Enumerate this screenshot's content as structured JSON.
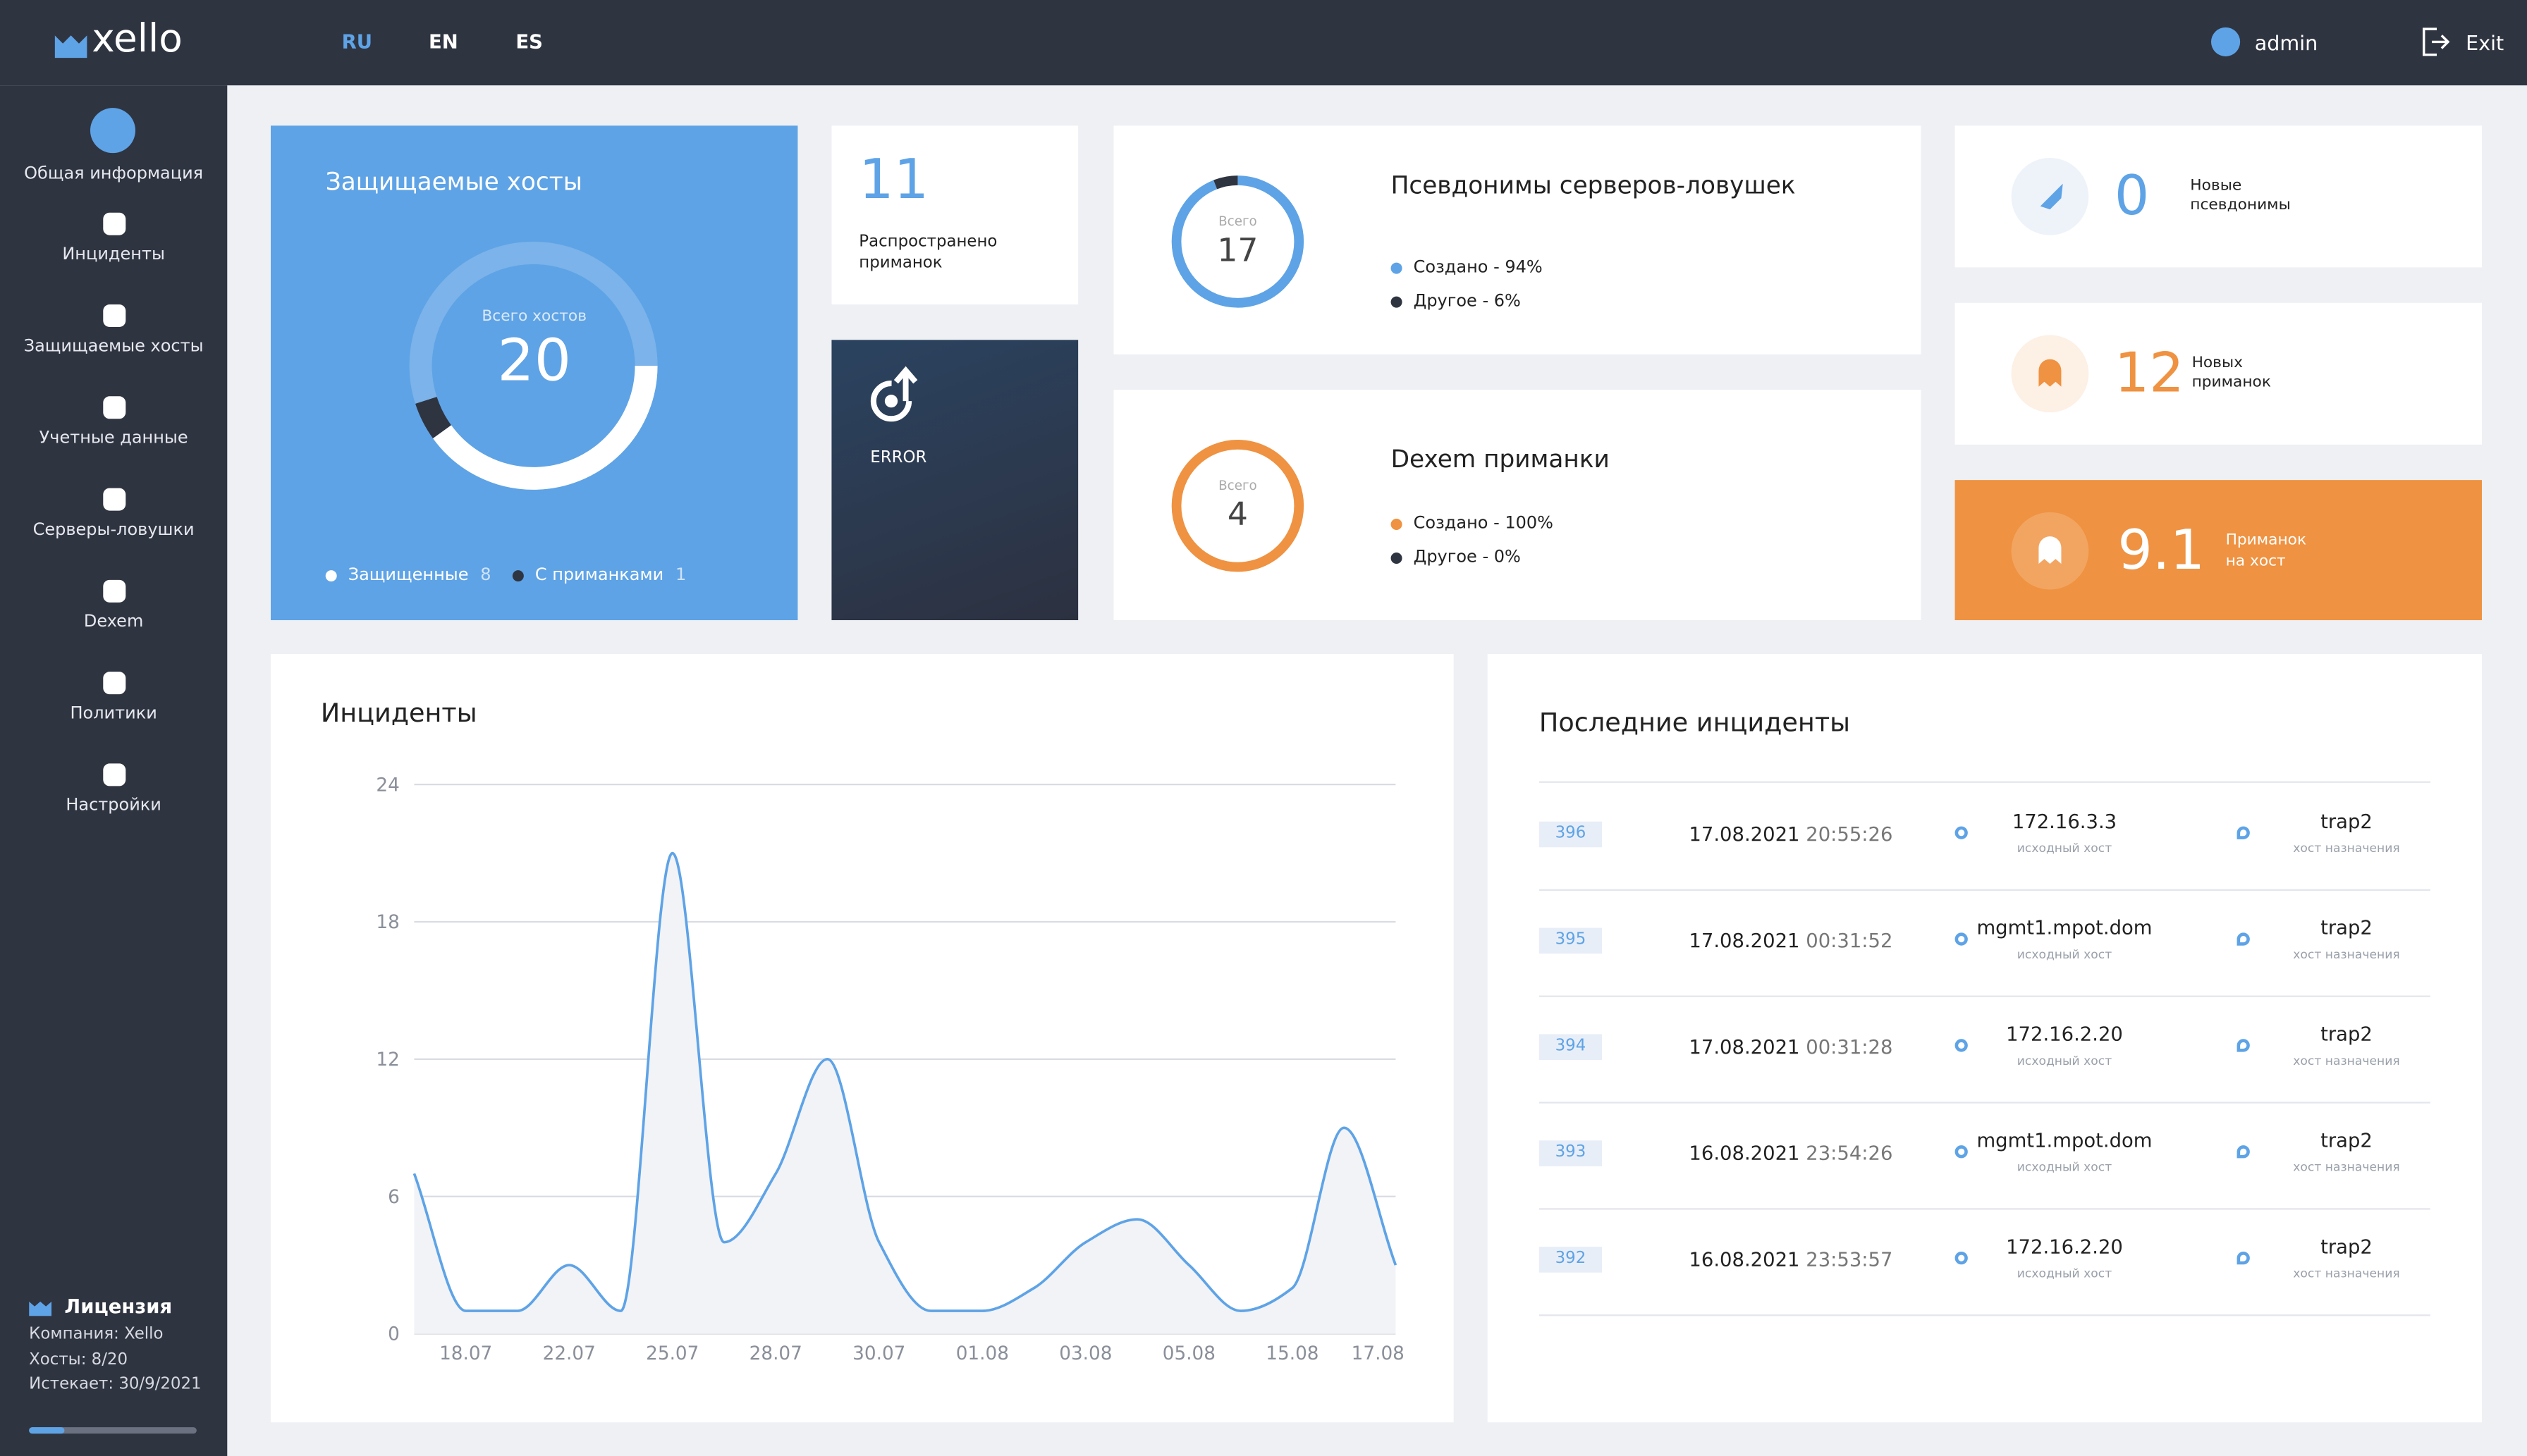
{
  "header": {
    "logo": "xello",
    "languages": [
      "RU",
      "EN",
      "ES"
    ],
    "user": "admin",
    "exit": "Exit"
  },
  "sidebar": {
    "nav": [
      "Общая информация",
      "Инциденты",
      "Защищаемые хосты",
      "Учетные данные",
      "Серверы-ловушки",
      "Dexem",
      "Политики",
      "Настройки"
    ],
    "license": {
      "title": "Лицензия",
      "company": "Компания: Xello",
      "hosts": "Хосты: 8/20",
      "expires": "Истекает: 30/9/2021"
    }
  },
  "protected_hosts": {
    "title": "Защищаемые хосты",
    "total_label": "Всего хостов",
    "total": 20,
    "legend": [
      {
        "label": "Защищенные",
        "value": 8
      },
      {
        "label": "С приманками",
        "value": 1
      }
    ]
  },
  "deployed": {
    "value": 11,
    "label": "Распространено приманок"
  },
  "error": {
    "label": "ERROR"
  },
  "trap_aliases": {
    "title": "Псевдонимы серверов-ловушек",
    "total_label": "Всего",
    "total": 17,
    "legend": [
      {
        "label": "Создано - 94%",
        "value": 94
      },
      {
        "label": "Другое - 6%",
        "value": 6
      }
    ]
  },
  "dexem": {
    "title": "Dexem приманки",
    "total_label": "Всего",
    "total": 4,
    "legend": [
      {
        "label": "Создано - 100%",
        "value": 100
      },
      {
        "label": "Другое - 0%",
        "value": 0
      }
    ]
  },
  "stats": [
    {
      "value": 0,
      "label": "Новые псевдонимы"
    },
    {
      "value": 12,
      "label": "Новых приманок"
    },
    {
      "value": 9.1,
      "label": "Приманок на хост"
    }
  ],
  "chart_data": {
    "type": "line",
    "title": "Инциденты",
    "color": "#5ea3e6",
    "area": true,
    "grid": true,
    "categories": [
      null,
      "18.07",
      null,
      "22.07",
      null,
      "25.07",
      null,
      "28.07",
      null,
      "30.07",
      null,
      "01.08",
      null,
      "03.08",
      null,
      "05.08",
      null,
      "15.08",
      null,
      "17.08"
    ],
    "values": [
      7,
      1,
      1,
      3,
      1,
      21,
      4,
      7,
      12,
      4,
      1,
      1,
      2,
      4,
      5,
      3,
      1,
      2,
      9,
      3
    ],
    "ylim": [
      0,
      24
    ],
    "yticks": [
      0,
      6,
      12,
      18,
      24
    ]
  },
  "recent": {
    "title": "Последние инциденты",
    "rows": [
      {
        "id": "396",
        "date": "17.08.2021",
        "time": "20:55:26",
        "source": "172.16.3.3",
        "source_caption": "исходный хост",
        "target": "trap2",
        "target_caption": "хост назначения"
      },
      {
        "id": "395",
        "date": "17.08.2021",
        "time": "00:31:52",
        "source": "mgmt1.mpot.dom",
        "source_caption": "исходный хост",
        "target": "trap2",
        "target_caption": "хост назначения"
      },
      {
        "id": "394",
        "date": "17.08.2021",
        "time": "00:31:28",
        "source": "172.16.2.20",
        "source_caption": "исходный хост",
        "target": "trap2",
        "target_caption": "хост назначения"
      },
      {
        "id": "393",
        "date": "16.08.2021",
        "time": "23:54:26",
        "source": "mgmt1.mpot.dom",
        "source_caption": "исходный хост",
        "target": "trap2",
        "target_caption": "хост назначения"
      },
      {
        "id": "392",
        "date": "16.08.2021",
        "time": "23:53:57",
        "source": "172.16.2.20",
        "source_caption": "исходный хост",
        "target": "trap2",
        "target_caption": "хост назначения"
      }
    ]
  }
}
